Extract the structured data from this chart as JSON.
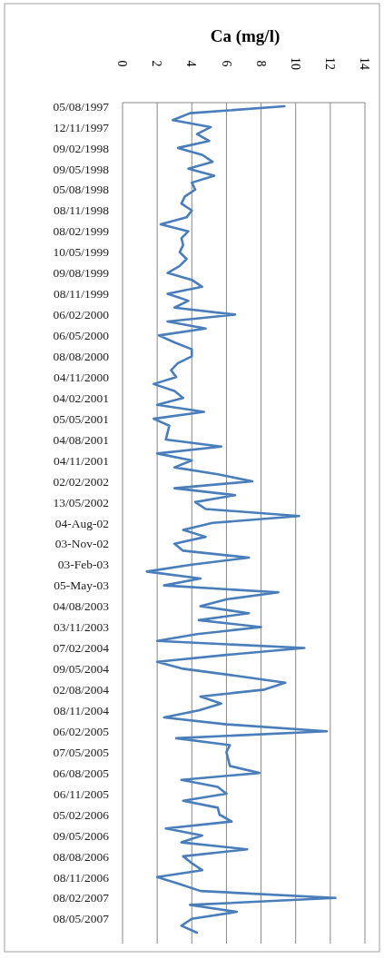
{
  "chart_data": {
    "type": "line",
    "orientation": "horizontal",
    "title": "Ca (mg/l)",
    "categories": [
      "05/08/1997",
      null,
      null,
      "12/11/1997",
      null,
      null,
      "09/02/1998",
      null,
      null,
      "09/05/1998",
      null,
      null,
      "05/08/1998",
      null,
      null,
      "08/11/1998",
      null,
      null,
      "08/02/1999",
      null,
      null,
      "10/05/1999",
      null,
      null,
      "09/08/1999",
      null,
      null,
      "08/11/1999",
      null,
      null,
      "06/02/2000",
      null,
      null,
      "06/05/2000",
      null,
      null,
      "08/08/2000",
      null,
      null,
      "04/11/2000",
      null,
      null,
      "04/02/2001",
      null,
      null,
      "05/05/2001",
      null,
      null,
      "04/08/2001",
      null,
      null,
      "04/11/2001",
      null,
      null,
      "02/02/2002",
      null,
      null,
      "13/05/2002",
      null,
      null,
      "04-Aug-02",
      null,
      null,
      "03-Nov-02",
      null,
      null,
      "03-Feb-03",
      null,
      null,
      "05-May-03",
      null,
      null,
      "04/08/2003",
      null,
      null,
      "03/11/2003",
      null,
      null,
      "07/02/2004",
      null,
      null,
      "09/05/2004",
      null,
      null,
      "02/08/2004",
      null,
      null,
      "08/11/2004",
      null,
      null,
      "06/02/2005",
      null,
      null,
      "07/05/2005",
      null,
      null,
      "06/08/2005",
      null,
      null,
      "06/11/2005",
      null,
      null,
      "05/02/2006",
      null,
      null,
      "09/05/2006",
      null,
      null,
      "08/08/2006",
      null,
      null,
      "08/11/2006",
      null,
      null,
      "08/02/2007",
      null,
      null,
      "08/05/2007",
      null,
      null
    ],
    "series": [
      {
        "color": "#4a7ebb",
        "values": [
          9.35,
          3.9,
          2.9,
          5.1,
          4.3,
          5.0,
          3.2,
          4.6,
          5.2,
          3.8,
          5.3,
          4.0,
          4.2,
          3.6,
          3.4,
          4.0,
          3.7,
          2.2,
          3.8,
          3.4,
          3.5,
          3.3,
          3.7,
          3.3,
          2.6,
          4.0,
          4.6,
          2.6,
          3.8,
          3.0,
          6.5,
          2.6,
          4.8,
          2.1,
          3.0,
          4.0,
          4.0,
          3.2,
          2.8,
          3.1,
          1.8,
          3.0,
          3.5,
          2.0,
          4.7,
          1.8,
          2.7,
          2.6,
          2.5,
          5.7,
          2.0,
          4.0,
          3.0,
          5.5,
          7.5,
          3.0,
          6.5,
          4.2,
          4.8,
          10.2,
          5.2,
          3.5,
          4.8,
          3.0,
          3.5,
          7.3,
          4.0,
          1.4,
          4.5,
          2.4,
          9.0,
          6.0,
          4.5,
          7.3,
          4.4,
          8.0,
          4.3,
          2.0,
          10.5,
          6.0,
          2.0,
          3.5,
          6.5,
          9.4,
          8.2,
          4.5,
          5.7,
          4.4,
          2.4,
          6.0,
          11.8,
          3.1,
          6.2,
          6.0,
          6.1,
          6.2,
          7.9,
          3.4,
          5.5,
          6.0,
          3.5,
          5.5,
          5.6,
          6.3,
          2.5,
          4.6,
          3.4,
          7.2,
          3.5,
          4.0,
          4.6,
          2.0,
          3.3,
          4.5,
          12.3,
          3.9,
          6.6,
          4.0,
          3.4,
          4.3
        ]
      }
    ],
    "xlim": [
      0,
      14
    ],
    "xticks": [
      0,
      2,
      4,
      6,
      8,
      10,
      12,
      14
    ],
    "grid": "x"
  }
}
